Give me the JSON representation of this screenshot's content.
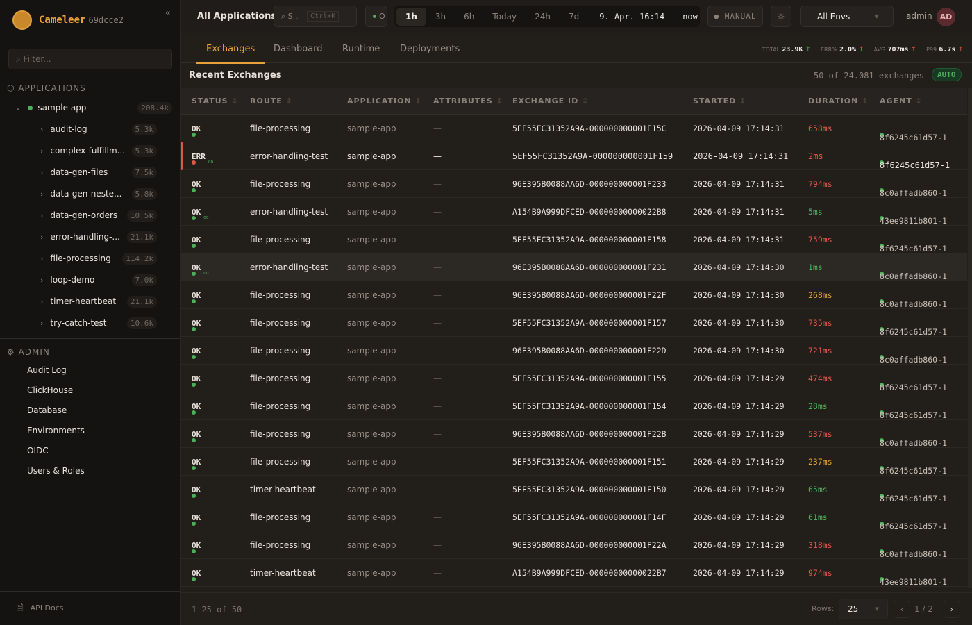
{
  "brand": {
    "name": "Cameleer",
    "version": "69dcce2"
  },
  "sidebar": {
    "filter_placeholder": "Filter...",
    "applications_label": "APPLICATIONS",
    "app": {
      "name": "sample app",
      "count": "208.4k"
    },
    "routes": [
      {
        "name": "audit-log",
        "count": "5.3k"
      },
      {
        "name": "complex-fulfillm...",
        "count": "5.3k"
      },
      {
        "name": "data-gen-files",
        "count": "7.5k"
      },
      {
        "name": "data-gen-neste...",
        "count": "5.8k"
      },
      {
        "name": "data-gen-orders",
        "count": "10.5k"
      },
      {
        "name": "error-handling-...",
        "count": "21.1k"
      },
      {
        "name": "file-processing",
        "count": "114.2k"
      },
      {
        "name": "loop-demo",
        "count": "7.0k"
      },
      {
        "name": "timer-heartbeat",
        "count": "21.1k"
      },
      {
        "name": "try-catch-test",
        "count": "10.6k"
      }
    ],
    "admin_label": "ADMIN",
    "admin_items": [
      "Audit Log",
      "ClickHouse",
      "Database",
      "Environments",
      "OIDC",
      "Users & Roles"
    ],
    "api_docs": "API Docs"
  },
  "topbar": {
    "title": "All Applications",
    "search": "S...",
    "search_shortcut": "Ctrl+K",
    "status_short": "O",
    "ranges": [
      "1h",
      "3h",
      "6h",
      "Today",
      "24h",
      "7d"
    ],
    "active_range": "1h",
    "range_from": "9. Apr. 16:14",
    "range_sep": "–",
    "range_to": "now",
    "refresh_mode": "MANUAL",
    "env": "All Envs",
    "user": "admin",
    "avatar": "AD"
  },
  "tabs": [
    "Exchanges",
    "Dashboard",
    "Runtime",
    "Deployments"
  ],
  "kpis": [
    {
      "label": "TOTAL",
      "value": "23.9K",
      "trend": "up",
      "color": "#4cb05a"
    },
    {
      "label": "ERR%",
      "value": "2.0%",
      "trend": "up",
      "color": "#e0584a"
    },
    {
      "label": "AVG",
      "value": "707ms",
      "trend": "up",
      "color": "#e0584a"
    },
    {
      "label": "P99",
      "value": "6.7s",
      "trend": "up",
      "color": "#e0584a"
    }
  ],
  "section": {
    "title": "Recent Exchanges",
    "count_text": "50 of 24.081 exchanges",
    "auto_label": "AUTO"
  },
  "columns": [
    "STATUS",
    "ROUTE",
    "APPLICATION",
    "ATTRIBUTES",
    "EXCHANGE ID",
    "STARTED",
    "DURATION",
    "AGENT"
  ],
  "rows": [
    {
      "status": "OK",
      "route": "file-processing",
      "app": "sample-app",
      "attr": "—",
      "id": "5EF55FC31352A9A-000000000001F15C",
      "started": "2026-04-09 17:14:31",
      "duration": "658ms",
      "level": "r",
      "agent": "8f6245c61d57-1"
    },
    {
      "status": "ERR",
      "retry": true,
      "route": "error-handling-test",
      "app": "sample-app",
      "attr": "—",
      "id": "5EF55FC31352A9A-000000000001F159",
      "started": "2026-04-09 17:14:31",
      "duration": "2ms",
      "level": "r",
      "agent": "8f6245c61d57-1"
    },
    {
      "status": "OK",
      "route": "file-processing",
      "app": "sample-app",
      "attr": "—",
      "id": "96E395B0088AA6D-000000000001F233",
      "started": "2026-04-09 17:14:31",
      "duration": "794ms",
      "level": "r",
      "agent": "8c0affadb860-1"
    },
    {
      "status": "OK",
      "retry": true,
      "route": "error-handling-test",
      "app": "sample-app",
      "attr": "—",
      "id": "A154B9A999DFCED-00000000000022B8",
      "started": "2026-04-09 17:14:31",
      "duration": "5ms",
      "level": "g",
      "agent": "43ee9811b801-1"
    },
    {
      "status": "OK",
      "route": "file-processing",
      "app": "sample-app",
      "attr": "—",
      "id": "5EF55FC31352A9A-000000000001F158",
      "started": "2026-04-09 17:14:31",
      "duration": "759ms",
      "level": "r",
      "agent": "8f6245c61d57-1"
    },
    {
      "status": "OK",
      "retry": true,
      "route": "error-handling-test",
      "app": "sample-app",
      "attr": "—",
      "id": "96E395B0088AA6D-000000000001F231",
      "started": "2026-04-09 17:14:30",
      "duration": "1ms",
      "level": "g",
      "agent": "8c0affadb860-1"
    },
    {
      "status": "OK",
      "route": "file-processing",
      "app": "sample-app",
      "attr": "—",
      "id": "96E395B0088AA6D-000000000001F22F",
      "started": "2026-04-09 17:14:30",
      "duration": "268ms",
      "level": "a",
      "agent": "8c0affadb860-1"
    },
    {
      "status": "OK",
      "route": "file-processing",
      "app": "sample-app",
      "attr": "—",
      "id": "5EF55FC31352A9A-000000000001F157",
      "started": "2026-04-09 17:14:30",
      "duration": "735ms",
      "level": "r",
      "agent": "8f6245c61d57-1"
    },
    {
      "status": "OK",
      "route": "file-processing",
      "app": "sample-app",
      "attr": "—",
      "id": "96E395B0088AA6D-000000000001F22D",
      "started": "2026-04-09 17:14:30",
      "duration": "721ms",
      "level": "r",
      "agent": "8c0affadb860-1"
    },
    {
      "status": "OK",
      "route": "file-processing",
      "app": "sample-app",
      "attr": "—",
      "id": "5EF55FC31352A9A-000000000001F155",
      "started": "2026-04-09 17:14:29",
      "duration": "474ms",
      "level": "r",
      "agent": "8f6245c61d57-1"
    },
    {
      "status": "OK",
      "route": "file-processing",
      "app": "sample-app",
      "attr": "—",
      "id": "5EF55FC31352A9A-000000000001F154",
      "started": "2026-04-09 17:14:29",
      "duration": "28ms",
      "level": "g",
      "agent": "8f6245c61d57-1"
    },
    {
      "status": "OK",
      "route": "file-processing",
      "app": "sample-app",
      "attr": "—",
      "id": "96E395B0088AA6D-000000000001F22B",
      "started": "2026-04-09 17:14:29",
      "duration": "537ms",
      "level": "r",
      "agent": "8c0affadb860-1"
    },
    {
      "status": "OK",
      "route": "file-processing",
      "app": "sample-app",
      "attr": "—",
      "id": "5EF55FC31352A9A-000000000001F151",
      "started": "2026-04-09 17:14:29",
      "duration": "237ms",
      "level": "a",
      "agent": "8f6245c61d57-1"
    },
    {
      "status": "OK",
      "route": "timer-heartbeat",
      "app": "sample-app",
      "attr": "—",
      "id": "5EF55FC31352A9A-000000000001F150",
      "started": "2026-04-09 17:14:29",
      "duration": "65ms",
      "level": "g",
      "agent": "8f6245c61d57-1"
    },
    {
      "status": "OK",
      "route": "file-processing",
      "app": "sample-app",
      "attr": "—",
      "id": "5EF55FC31352A9A-000000000001F14F",
      "started": "2026-04-09 17:14:29",
      "duration": "61ms",
      "level": "g",
      "agent": "8f6245c61d57-1"
    },
    {
      "status": "OK",
      "route": "file-processing",
      "app": "sample-app",
      "attr": "—",
      "id": "96E395B0088AA6D-000000000001F22A",
      "started": "2026-04-09 17:14:29",
      "duration": "318ms",
      "level": "r",
      "agent": "8c0affadb860-1"
    },
    {
      "status": "OK",
      "route": "timer-heartbeat",
      "app": "sample-app",
      "attr": "—",
      "id": "A154B9A999DFCED-00000000000022B7",
      "started": "2026-04-09 17:14:29",
      "duration": "974ms",
      "level": "r",
      "agent": "43ee9811b801-1"
    }
  ],
  "footer": {
    "range": "1-25 of 50",
    "rows_label": "Rows:",
    "rows_value": "25",
    "page": "1",
    "page_sep": "/",
    "pages": "2"
  }
}
